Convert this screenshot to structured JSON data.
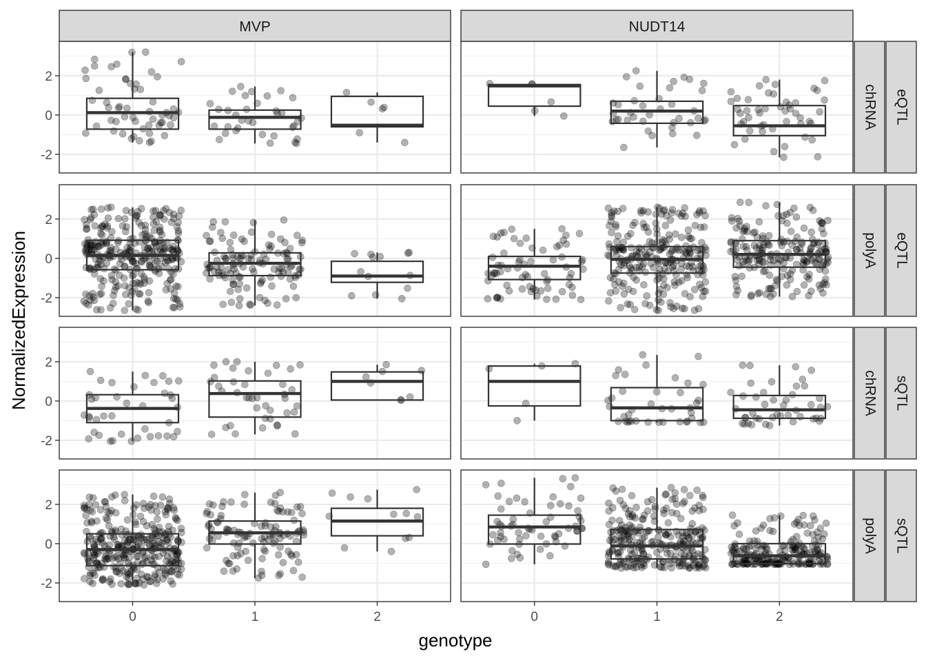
{
  "chart_data": {
    "type": "boxplot",
    "xlabel": "genotype",
    "ylabel": "NormalizedExpression",
    "x_categories": [
      "0",
      "1",
      "2"
    ],
    "y_ticks": [
      -2,
      0,
      2
    ],
    "ylim": [
      -2.95,
      3.75
    ],
    "grid": true,
    "columns": [
      "MVP",
      "NUDT14"
    ],
    "rows": [
      {
        "strip_inner": "chRNA",
        "strip_outer": "eQTL"
      },
      {
        "strip_inner": "polyA",
        "strip_outer": "eQTL"
      },
      {
        "strip_inner": "chRNA",
        "strip_outer": "sQTL"
      },
      {
        "strip_inner": "polyA",
        "strip_outer": "sQTL"
      }
    ],
    "panels": [
      {
        "column": "MVP",
        "row": 0,
        "boxes": [
          {
            "genotype": "0",
            "min": -1.4,
            "q1": -0.72,
            "median": 0.12,
            "q3": 0.85,
            "max": 3.2,
            "n": 55
          },
          {
            "genotype": "1",
            "min": -1.45,
            "q1": -0.72,
            "median": -0.12,
            "q3": 0.25,
            "max": 1.45,
            "n": 35
          },
          {
            "genotype": "2",
            "min": -1.4,
            "q1": -0.6,
            "median": -0.52,
            "q3": 0.95,
            "max": 1.15,
            "n": 6
          }
        ]
      },
      {
        "column": "NUDT14",
        "row": 0,
        "boxes": [
          {
            "genotype": "0",
            "min": -0.05,
            "q1": 0.45,
            "median": 1.48,
            "q3": 1.55,
            "max": 1.6,
            "n": 6
          },
          {
            "genotype": "1",
            "min": -1.65,
            "q1": -0.42,
            "median": 0.2,
            "q3": 0.7,
            "max": 2.25,
            "n": 38
          },
          {
            "genotype": "2",
            "min": -2.15,
            "q1": -1.05,
            "median": -0.55,
            "q3": 0.48,
            "max": 1.8,
            "n": 48
          }
        ]
      },
      {
        "column": "MVP",
        "row": 1,
        "boxes": [
          {
            "genotype": "0",
            "min": -2.65,
            "q1": -0.58,
            "median": 0.15,
            "q3": 0.92,
            "max": 2.6,
            "n": 300
          },
          {
            "genotype": "1",
            "min": -2.4,
            "q1": -0.88,
            "median": -0.25,
            "q3": 0.28,
            "max": 1.95,
            "n": 120
          },
          {
            "genotype": "2",
            "min": -2.05,
            "q1": -1.22,
            "median": -0.9,
            "q3": -0.15,
            "max": 0.3,
            "n": 13
          }
        ]
      },
      {
        "column": "NUDT14",
        "row": 1,
        "boxes": [
          {
            "genotype": "0",
            "min": -2.1,
            "q1": -1.08,
            "median": -0.4,
            "q3": 0.1,
            "max": 1.5,
            "n": 70
          },
          {
            "genotype": "1",
            "min": -2.65,
            "q1": -0.75,
            "median": -0.05,
            "q3": 0.6,
            "max": 2.6,
            "n": 250
          },
          {
            "genotype": "2",
            "min": -1.95,
            "q1": -0.45,
            "median": 0.2,
            "q3": 0.9,
            "max": 2.85,
            "n": 200
          }
        ]
      },
      {
        "column": "MVP",
        "row": 2,
        "boxes": [
          {
            "genotype": "0",
            "min": -2.05,
            "q1": -1.1,
            "median": -0.38,
            "q3": 0.32,
            "max": 1.5,
            "n": 40
          },
          {
            "genotype": "1",
            "min": -1.7,
            "q1": -0.82,
            "median": 0.38,
            "q3": 1.02,
            "max": 2.0,
            "n": 40
          },
          {
            "genotype": "2",
            "min": 0.05,
            "q1": 0.05,
            "median": 1.0,
            "q3": 1.48,
            "max": 1.85,
            "n": 8
          }
        ]
      },
      {
        "column": "NUDT14",
        "row": 2,
        "boxes": [
          {
            "genotype": "0",
            "min": -1.0,
            "q1": -0.25,
            "median": 1.0,
            "q3": 1.78,
            "max": 1.9,
            "n": 5
          },
          {
            "genotype": "1",
            "min": -1.1,
            "q1": -1.0,
            "median": -0.35,
            "q3": 0.68,
            "max": 2.35,
            "n": 40
          },
          {
            "genotype": "2",
            "min": -1.25,
            "q1": -0.88,
            "median": -0.45,
            "q3": 0.28,
            "max": 1.82,
            "n": 45
          }
        ]
      },
      {
        "column": "MVP",
        "row": 3,
        "boxes": [
          {
            "genotype": "0",
            "min": -2.1,
            "q1": -1.12,
            "median": -0.3,
            "q3": 0.5,
            "max": 2.5,
            "n": 320
          },
          {
            "genotype": "1",
            "min": -1.75,
            "q1": -0.02,
            "median": 0.55,
            "q3": 1.15,
            "max": 2.6,
            "n": 110
          },
          {
            "genotype": "2",
            "min": -0.4,
            "q1": 0.4,
            "median": 1.15,
            "q3": 1.8,
            "max": 2.75,
            "n": 12
          }
        ]
      },
      {
        "column": "NUDT14",
        "row": 3,
        "boxes": [
          {
            "genotype": "0",
            "min": -1.05,
            "q1": -0.02,
            "median": 0.85,
            "q3": 1.45,
            "max": 3.35,
            "n": 60
          },
          {
            "genotype": "1",
            "min": -1.25,
            "q1": -0.78,
            "median": -0.12,
            "q3": 0.72,
            "max": 2.85,
            "n": 260
          },
          {
            "genotype": "2",
            "min": -1.05,
            "q1": -1.02,
            "median": -0.62,
            "q3": 0.0,
            "max": 1.45,
            "n": 200
          }
        ]
      }
    ]
  }
}
